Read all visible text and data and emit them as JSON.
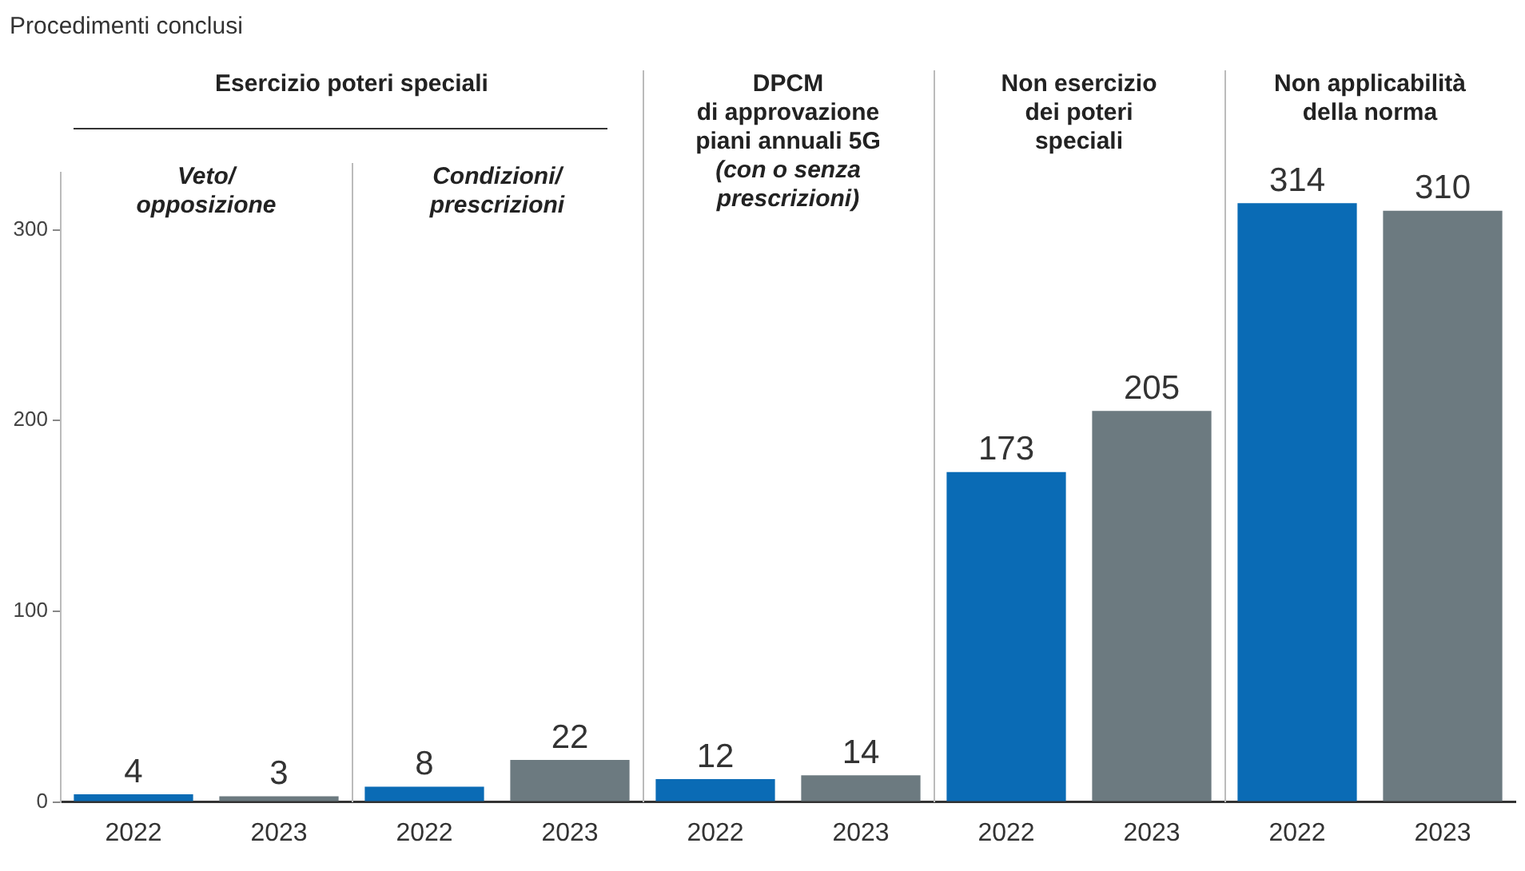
{
  "chart_data": {
    "type": "bar",
    "title": "Procedimenti conclusi",
    "categories": [
      "2022",
      "2023",
      "2022",
      "2023",
      "2022",
      "2023",
      "2022",
      "2023",
      "2022",
      "2023"
    ],
    "values": [
      4,
      3,
      8,
      22,
      12,
      14,
      173,
      205,
      314,
      310
    ],
    "colors": [
      "#0a6bb5",
      "#6c7a80",
      "#0a6bb5",
      "#6c7a80",
      "#0a6bb5",
      "#6c7a80",
      "#0a6bb5",
      "#6c7a80",
      "#0a6bb5",
      "#6c7a80"
    ],
    "ylim": [
      0,
      330
    ],
    "yticks": [
      0,
      100,
      200,
      300
    ],
    "grid": false,
    "legend": false,
    "data_labels": true,
    "annotations": [
      "Esercizio poteri speciali",
      "Veto/\nopposizione",
      "Condizioni/\nprescrizioni",
      "DPCM\ndi approvazione\npiani annuali 5G\n(con o senza\nprescrizioni)",
      "Non esercizio\ndei poteri\nspeciali",
      "Non applicabilità\ndella norma"
    ]
  }
}
